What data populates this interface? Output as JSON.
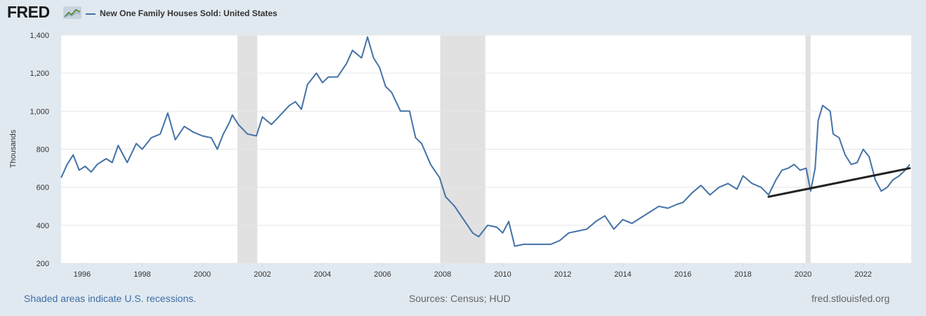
{
  "header": {
    "logo_text": "FRED",
    "logo_icon": "line-graph-icon",
    "legend_label": "New One Family Houses Sold: United States",
    "series_color": "#4572a7"
  },
  "footer": {
    "recession_note": "Shaded areas indicate U.S. recessions.",
    "sources": "Sources: Census; HUD",
    "site": "fred.stlouisfed.org"
  },
  "chart_data": {
    "type": "line",
    "title": "",
    "xlabel": "",
    "ylabel": "Thousands",
    "xlim": [
      1995.3,
      2023.6
    ],
    "ylim": [
      200,
      1400
    ],
    "y_ticks": [
      200,
      400,
      600,
      800,
      1000,
      1200,
      1400
    ],
    "y_tick_labels": [
      "200",
      "400",
      "600",
      "800",
      "1,000",
      "1,200",
      "1,400"
    ],
    "x_ticks": [
      1996,
      1998,
      2000,
      2002,
      2004,
      2006,
      2008,
      2010,
      2012,
      2014,
      2016,
      2018,
      2020,
      2022
    ],
    "x_tick_labels": [
      "1996",
      "1998",
      "2000",
      "2002",
      "2004",
      "2006",
      "2008",
      "2010",
      "2012",
      "2014",
      "2016",
      "2018",
      "2020",
      "2022"
    ],
    "grid": true,
    "recessions": [
      {
        "start": 2001.17,
        "end": 2001.83
      },
      {
        "start": 2007.92,
        "end": 2009.42
      },
      {
        "start": 2020.08,
        "end": 2020.25
      }
    ],
    "series": [
      {
        "name": "New One Family Houses Sold: United States",
        "color": "#4572a7",
        "points": [
          [
            1995.3,
            650
          ],
          [
            1995.5,
            720
          ],
          [
            1995.7,
            770
          ],
          [
            1995.9,
            690
          ],
          [
            1996.1,
            710
          ],
          [
            1996.3,
            680
          ],
          [
            1996.5,
            720
          ],
          [
            1996.8,
            750
          ],
          [
            1997.0,
            730
          ],
          [
            1997.2,
            820
          ],
          [
            1997.5,
            730
          ],
          [
            1997.8,
            830
          ],
          [
            1998.0,
            800
          ],
          [
            1998.3,
            860
          ],
          [
            1998.6,
            880
          ],
          [
            1998.85,
            990
          ],
          [
            1999.1,
            850
          ],
          [
            1999.4,
            920
          ],
          [
            1999.7,
            890
          ],
          [
            2000.0,
            870
          ],
          [
            2000.3,
            860
          ],
          [
            2000.5,
            800
          ],
          [
            2000.7,
            880
          ],
          [
            2000.9,
            940
          ],
          [
            2001.0,
            980
          ],
          [
            2001.2,
            930
          ],
          [
            2001.5,
            880
          ],
          [
            2001.8,
            870
          ],
          [
            2002.0,
            970
          ],
          [
            2002.3,
            930
          ],
          [
            2002.6,
            980
          ],
          [
            2002.9,
            1030
          ],
          [
            2003.1,
            1050
          ],
          [
            2003.3,
            1010
          ],
          [
            2003.5,
            1140
          ],
          [
            2003.8,
            1200
          ],
          [
            2004.0,
            1150
          ],
          [
            2004.2,
            1180
          ],
          [
            2004.5,
            1180
          ],
          [
            2004.8,
            1250
          ],
          [
            2005.0,
            1320
          ],
          [
            2005.3,
            1280
          ],
          [
            2005.5,
            1390
          ],
          [
            2005.7,
            1280
          ],
          [
            2005.9,
            1230
          ],
          [
            2006.1,
            1130
          ],
          [
            2006.3,
            1100
          ],
          [
            2006.6,
            1000
          ],
          [
            2006.9,
            1000
          ],
          [
            2007.1,
            860
          ],
          [
            2007.3,
            830
          ],
          [
            2007.6,
            720
          ],
          [
            2007.9,
            650
          ],
          [
            2008.1,
            550
          ],
          [
            2008.4,
            500
          ],
          [
            2008.7,
            430
          ],
          [
            2009.0,
            360
          ],
          [
            2009.2,
            340
          ],
          [
            2009.5,
            400
          ],
          [
            2009.8,
            390
          ],
          [
            2010.0,
            360
          ],
          [
            2010.2,
            420
          ],
          [
            2010.4,
            290
          ],
          [
            2010.7,
            300
          ],
          [
            2011.0,
            300
          ],
          [
            2011.3,
            300
          ],
          [
            2011.6,
            300
          ],
          [
            2011.9,
            320
          ],
          [
            2012.2,
            360
          ],
          [
            2012.5,
            370
          ],
          [
            2012.8,
            380
          ],
          [
            2013.1,
            420
          ],
          [
            2013.4,
            450
          ],
          [
            2013.7,
            380
          ],
          [
            2014.0,
            430
          ],
          [
            2014.3,
            410
          ],
          [
            2014.6,
            440
          ],
          [
            2014.9,
            470
          ],
          [
            2015.2,
            500
          ],
          [
            2015.5,
            490
          ],
          [
            2015.8,
            510
          ],
          [
            2016.0,
            520
          ],
          [
            2016.3,
            570
          ],
          [
            2016.6,
            610
          ],
          [
            2016.9,
            560
          ],
          [
            2017.2,
            600
          ],
          [
            2017.5,
            620
          ],
          [
            2017.8,
            590
          ],
          [
            2018.0,
            660
          ],
          [
            2018.3,
            620
          ],
          [
            2018.6,
            600
          ],
          [
            2018.85,
            560
          ],
          [
            2019.1,
            640
          ],
          [
            2019.3,
            690
          ],
          [
            2019.5,
            700
          ],
          [
            2019.7,
            720
          ],
          [
            2019.9,
            690
          ],
          [
            2020.1,
            700
          ],
          [
            2020.25,
            580
          ],
          [
            2020.4,
            700
          ],
          [
            2020.5,
            950
          ],
          [
            2020.65,
            1030
          ],
          [
            2020.9,
            1000
          ],
          [
            2021.0,
            880
          ],
          [
            2021.2,
            860
          ],
          [
            2021.4,
            770
          ],
          [
            2021.6,
            720
          ],
          [
            2021.8,
            730
          ],
          [
            2022.0,
            800
          ],
          [
            2022.2,
            760
          ],
          [
            2022.4,
            640
          ],
          [
            2022.6,
            580
          ],
          [
            2022.8,
            600
          ],
          [
            2023.0,
            640
          ],
          [
            2023.2,
            660
          ],
          [
            2023.4,
            690
          ],
          [
            2023.55,
            720
          ]
        ]
      }
    ],
    "annotations": [
      {
        "type": "trend-line",
        "from": [
          2018.85,
          550
        ],
        "to": [
          2023.55,
          700
        ],
        "color": "#222222"
      }
    ]
  }
}
